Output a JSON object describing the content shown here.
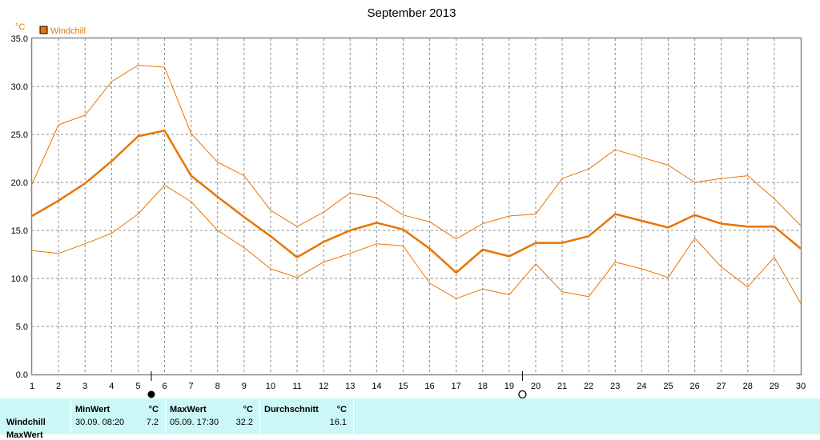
{
  "chart_data": {
    "type": "line",
    "title": "September 2013",
    "unit": "°C",
    "legend": "Windchill",
    "x": [
      1,
      2,
      3,
      4,
      5,
      6,
      7,
      8,
      9,
      10,
      11,
      12,
      13,
      14,
      15,
      16,
      17,
      18,
      19,
      20,
      21,
      22,
      23,
      24,
      25,
      26,
      27,
      28,
      29,
      30
    ],
    "ylim": [
      0,
      35
    ],
    "yticks": [
      "0.0",
      "5.0",
      "10.0",
      "15.0",
      "20.0",
      "25.0",
      "30.0",
      "35.0"
    ],
    "grid": true,
    "series": [
      {
        "role": "max",
        "values": [
          19.8,
          26.0,
          27.0,
          30.5,
          32.2,
          32.0,
          25.1,
          22.1,
          20.7,
          17.1,
          15.4,
          16.9,
          18.9,
          18.4,
          16.6,
          15.9,
          14.1,
          15.7,
          16.5,
          16.7,
          20.4,
          21.4,
          23.4,
          22.6,
          21.8,
          20.0,
          20.4,
          20.7,
          18.3,
          15.5
        ]
      },
      {
        "role": "avg",
        "values": [
          16.5,
          18.1,
          19.9,
          22.2,
          24.8,
          25.4,
          20.7,
          18.5,
          16.4,
          14.4,
          12.2,
          13.8,
          15.0,
          15.8,
          15.1,
          13.1,
          10.6,
          13.0,
          12.3,
          13.7,
          13.7,
          14.4,
          16.7,
          16.0,
          15.3,
          16.6,
          15.7,
          15.4,
          15.4,
          13.1
        ]
      },
      {
        "role": "min",
        "values": [
          12.9,
          12.6,
          13.6,
          14.7,
          16.7,
          19.7,
          18.0,
          15.0,
          13.2,
          11.0,
          10.1,
          11.7,
          12.6,
          13.6,
          13.4,
          9.5,
          7.9,
          8.9,
          8.3,
          11.5,
          8.6,
          8.1,
          11.7,
          11.0,
          10.1,
          14.2,
          11.2,
          9.1,
          12.2,
          7.4
        ]
      }
    ],
    "moon_markers": [
      {
        "day": 5.5,
        "phase": "new-moon"
      },
      {
        "day": 19.5,
        "phase": "full-moon"
      }
    ]
  },
  "colors": {
    "line": "#e87400",
    "unit_text": "#e87400",
    "stats_bg": "#ccf7f7",
    "grid": "#888888"
  },
  "stats": {
    "row_label": "Windchill",
    "row2_label": "MaxWert",
    "min_header": "MinWert",
    "min_unit": "°C",
    "min_time": "30.09.  08:20",
    "min_value": "7.2",
    "max_header": "MaxWert",
    "max_unit": "°C",
    "max_time": "05.09.  17:30",
    "max_value": "32.2",
    "avg_header": "Durchschnitt",
    "avg_unit": "°C",
    "avg_value": "16.1"
  }
}
